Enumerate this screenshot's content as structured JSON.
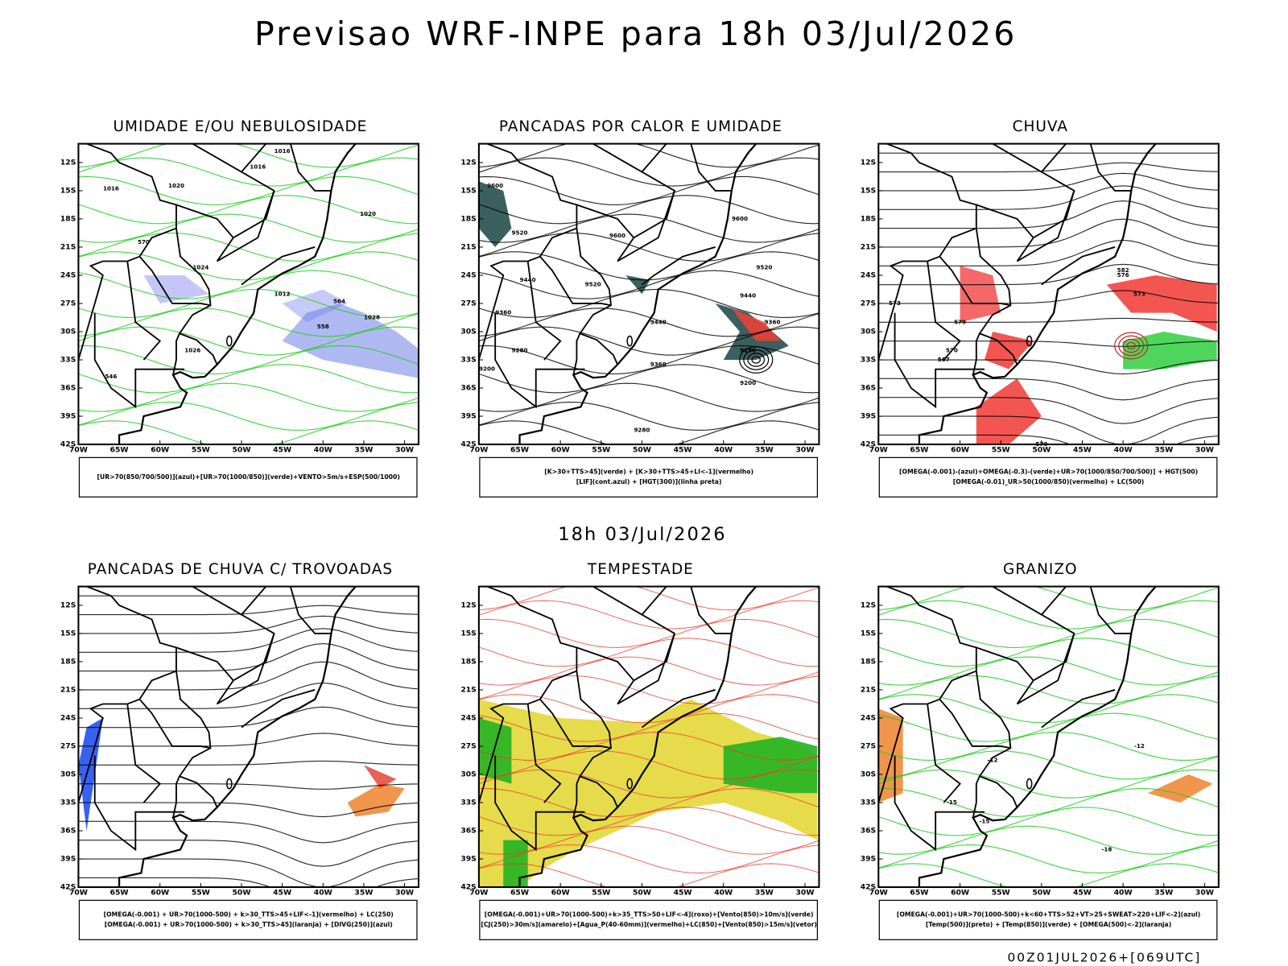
{
  "title": "Previsao WRF-INPE  para 18h 03/Jul/2026",
  "subtitle": "18h 03/Jul/2026",
  "footer": "00Z01JUL2026+[069UTC]",
  "lat_labels": [
    "12S",
    "15S",
    "18S",
    "21S",
    "24S",
    "27S",
    "30S",
    "33S",
    "36S",
    "39S",
    "42S"
  ],
  "lon_labels": [
    "70W",
    "65W",
    "60W",
    "55W",
    "50W",
    "45W",
    "40W",
    "35W",
    "30W"
  ],
  "panels": [
    {
      "title": "UMIDADE E/OU NEBULOSIDADE",
      "legend": [
        "[UR>70(850/700/500)](azul)+[UR>70(1000/850)](verde)+VENTO>5m/s+ESP(500/1000)"
      ],
      "contour_labels": [
        "1016",
        "1016",
        "1016",
        "1020",
        "1020",
        "1024",
        "1012",
        "1028",
        "1026",
        "570",
        "564",
        "558",
        "546"
      ]
    },
    {
      "title": "PANCADAS POR CALOR E UMIDADE",
      "legend": [
        "[K>30+TTS>45](verde) + [K>30+TTS>45+LI<-1](vermelho)",
        "[LIF](cont.azul) + [HGT(300)](linha preta)"
      ],
      "contour_labels": [
        "9600",
        "9520",
        "9600",
        "9600",
        "9520",
        "9440",
        "9360",
        "9280",
        "9200",
        "9440",
        "9360",
        "9280",
        "9200",
        "9520",
        "9440",
        "9360",
        "9280"
      ]
    },
    {
      "title": "CHUVA",
      "legend": [
        "[OMEGA(-0.001)-(azul)+OMEGA(-0.3)-(verde)+UR>70(1000/850/700/500)] + HGT(500)",
        "[OMEGA(-0.01)_UR>50(1000/850)(vermelho) + LC(500)"
      ],
      "contour_labels": [
        "579",
        "573",
        "570",
        "576",
        "573",
        "567",
        "582",
        "570"
      ]
    },
    {
      "title": "PANCADAS DE CHUVA C/ TROVOADAS",
      "legend": [
        "[OMEGA(-0.001) + UR>70(1000-500) + k>30_TTS>45+LIF<-1](vermelho) + LC(250)",
        "[OMEGA(-0.001) + UR>70(1000-500) + k>30_TTS>45](laranja) + [DIVG(250)](azul)"
      ],
      "contour_labels": []
    },
    {
      "title": "TEMPESTADE",
      "legend": [
        "[OMEGA(-0.001)+UR>70(1000-500)+k>35_TTS>50+LIF<-4](roxo)+[Vento(850)>10m/s](verde)",
        "[CJ(250)>30m/s](amarelo)+[Agua_P(40-60mm)](vermelho)+LC(850)+[Vento(850)>15m/s](vetor)"
      ],
      "contour_labels": []
    },
    {
      "title": "GRANIZO",
      "legend": [
        "[OMEGA(-0.001)+UR>70(1000-500)+k<60+TTS>52+VT>25+SWEAT>220+LIF<-2](azul)",
        "[Temp(500)](preto) + [Temp(850)](verde) + [OMEGA(500)<-2](laranja)"
      ],
      "contour_labels": [
        "-12",
        "-12",
        "-15",
        "-15",
        "-18"
      ]
    }
  ]
}
